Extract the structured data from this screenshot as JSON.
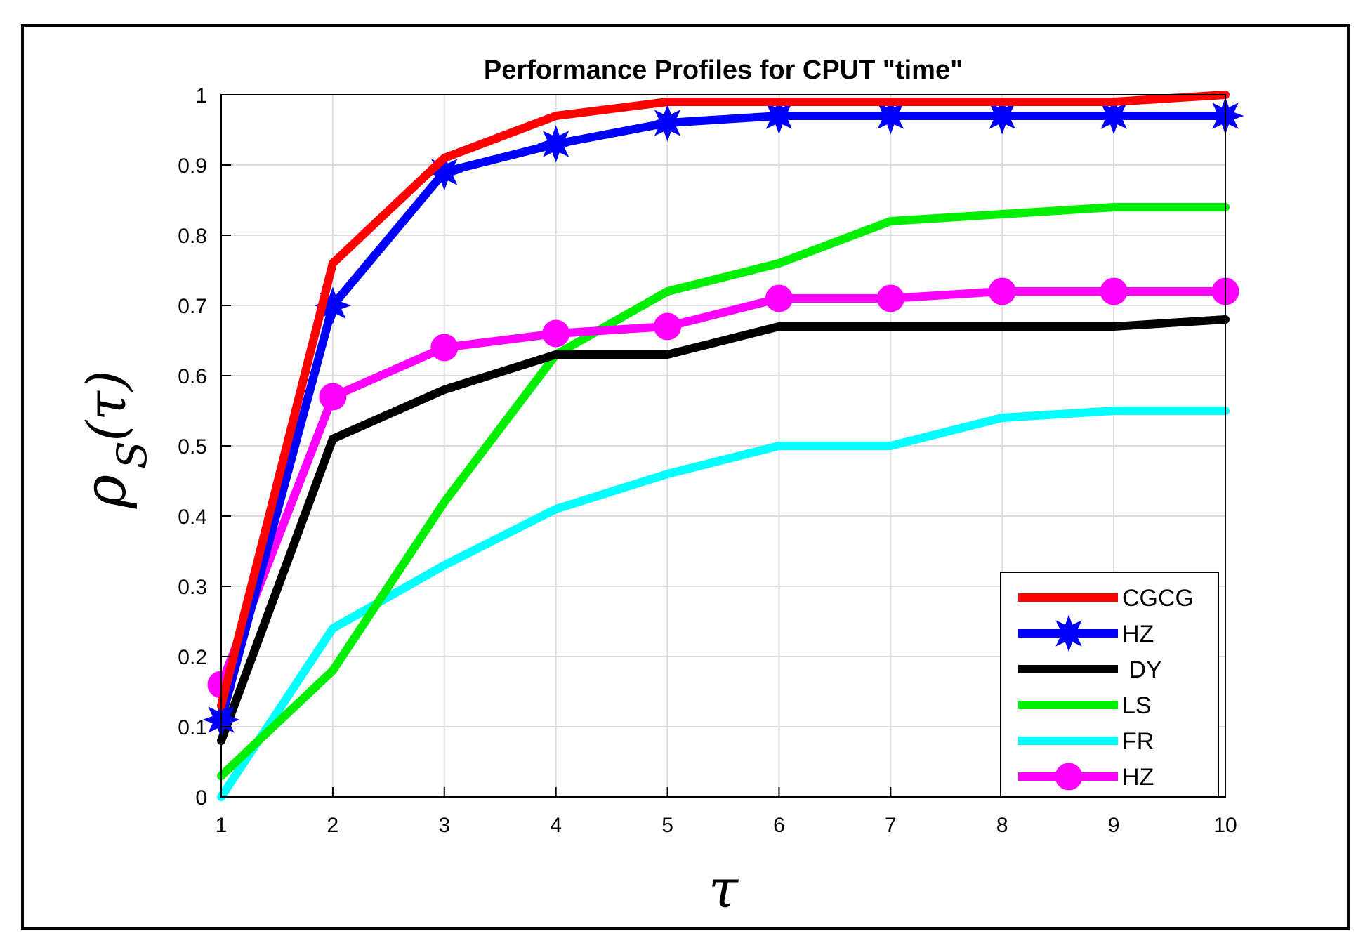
{
  "chart_data": {
    "type": "line",
    "title": "Performance Profiles for CPUT \"time\"",
    "xlabel": "τ",
    "ylabel_main": "ρ",
    "ylabel_sub": "S",
    "ylabel_arg": "(τ)",
    "xlim": [
      1,
      10
    ],
    "ylim": [
      0,
      1
    ],
    "x_ticks": [
      "1",
      "2",
      "3",
      "4",
      "5",
      "6",
      "7",
      "8",
      "9",
      "10"
    ],
    "y_ticks": [
      "0",
      "0.1",
      "0.2",
      "0.3",
      "0.4",
      "0.5",
      "0.6",
      "0.7",
      "0.8",
      "0.9",
      "1"
    ],
    "grid": true,
    "legend_position": "bottom-right",
    "x": [
      1,
      2,
      3,
      4,
      5,
      6,
      7,
      8,
      9,
      10
    ],
    "series": [
      {
        "name": "CGCG",
        "color": "#ff0000",
        "marker": "none",
        "values": [
          0.13,
          0.76,
          0.91,
          0.97,
          0.99,
          0.99,
          0.99,
          0.99,
          0.99,
          1.0
        ]
      },
      {
        "name": "HZ",
        "color": "#0000ff",
        "marker": "star",
        "values": [
          0.11,
          0.7,
          0.89,
          0.93,
          0.96,
          0.97,
          0.97,
          0.97,
          0.97,
          0.97
        ]
      },
      {
        "name": " DY",
        "color": "#000000",
        "marker": "none",
        "values": [
          0.08,
          0.51,
          0.58,
          0.63,
          0.63,
          0.67,
          0.67,
          0.67,
          0.67,
          0.68
        ]
      },
      {
        "name": "LS",
        "color": "#00ee00",
        "marker": "none",
        "values": [
          0.03,
          0.18,
          0.42,
          0.63,
          0.72,
          0.76,
          0.82,
          0.83,
          0.84,
          0.84
        ]
      },
      {
        "name": "FR",
        "color": "#00ffff",
        "marker": "none",
        "values": [
          0.0,
          0.24,
          0.33,
          0.41,
          0.46,
          0.5,
          0.5,
          0.54,
          0.55,
          0.55
        ]
      },
      {
        "name": "HZ",
        "color": "#ff00ff",
        "marker": "circle",
        "values": [
          0.16,
          0.57,
          0.64,
          0.66,
          0.67,
          0.71,
          0.71,
          0.72,
          0.72,
          0.72
        ]
      }
    ]
  }
}
